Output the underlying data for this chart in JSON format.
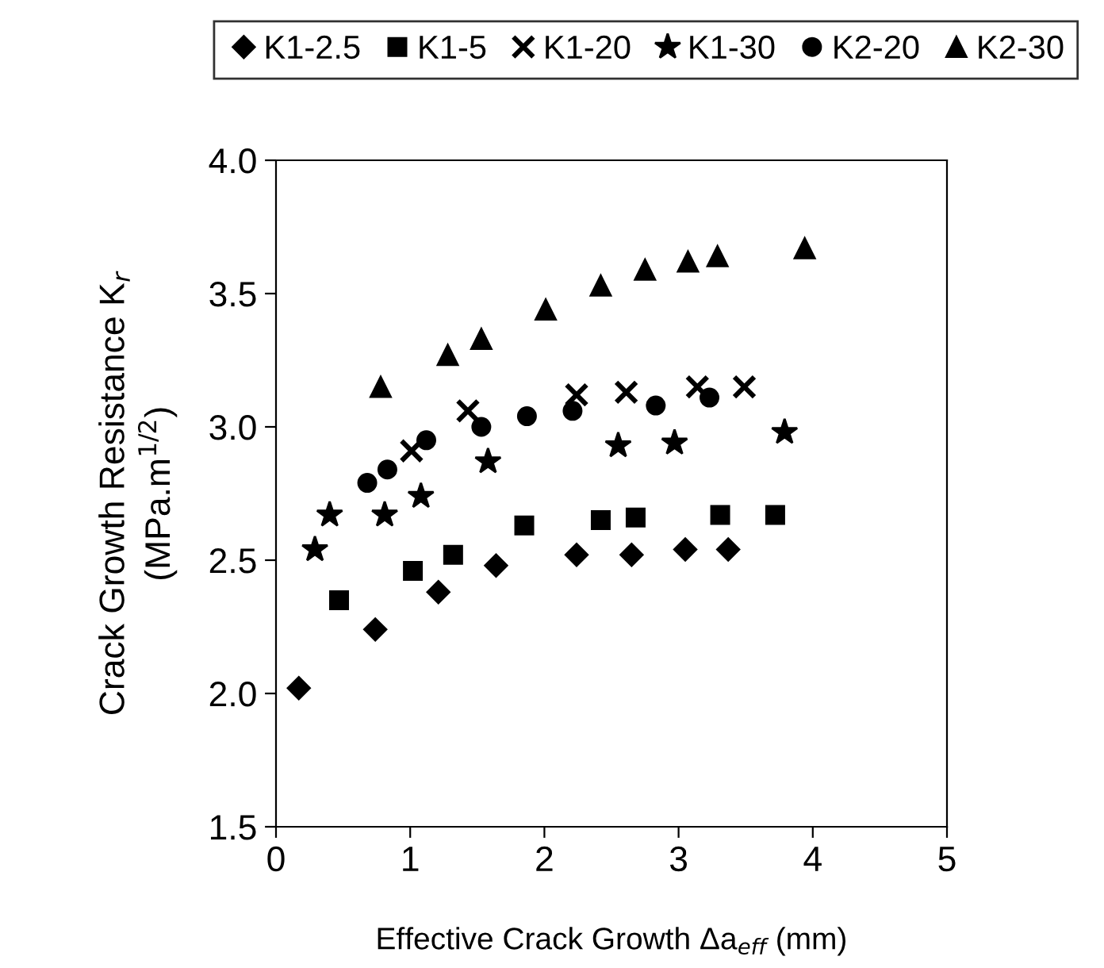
{
  "chart_data": {
    "type": "scatter",
    "xlabel": "Effective Crack Growth Δa$_{eff}$ (mm)",
    "ylabel": "Crack Growth Resistance K$_{r}$\n(MPa.m$^{1/2}$)",
    "xlim": [
      0,
      5
    ],
    "xticks": [
      0,
      1,
      2,
      3,
      4,
      5
    ],
    "ylim": [
      1.5,
      4.0
    ],
    "yticks": [
      {
        "value": 1.5,
        "label": "1.5"
      },
      {
        "value": 2.0,
        "label": "2.0"
      },
      {
        "value": 2.5,
        "label": "2.5"
      },
      {
        "value": 3.0,
        "label": "3.0"
      },
      {
        "value": 3.5,
        "label": "3.5"
      },
      {
        "value": 4.0,
        "label": "4.0"
      }
    ],
    "grid": false,
    "legend": "top",
    "series": [
      {
        "name": "K1-2.5",
        "color": "#000000",
        "marker": "diamond",
        "x": [
          0.17,
          0.74,
          1.21,
          1.64,
          2.24,
          2.65,
          3.05,
          3.37
        ],
        "values": [
          2.02,
          2.24,
          2.38,
          2.48,
          2.52,
          2.52,
          2.54,
          2.54
        ]
      },
      {
        "name": "K1-5",
        "color": "#000000",
        "marker": "square",
        "x": [
          0.47,
          1.02,
          1.32,
          1.85,
          2.42,
          2.68,
          3.31,
          3.72
        ],
        "values": [
          2.35,
          2.46,
          2.52,
          2.63,
          2.65,
          2.66,
          2.67,
          2.67
        ]
      },
      {
        "name": "K1-20",
        "color": "#000000",
        "marker": "cross",
        "x": [
          1.01,
          1.43,
          2.24,
          2.61,
          3.14,
          3.49
        ],
        "values": [
          2.91,
          3.06,
          3.12,
          3.13,
          3.15,
          3.15
        ]
      },
      {
        "name": "K1-30",
        "color": "#000000",
        "marker": "star",
        "x": [
          0.29,
          0.4,
          0.81,
          1.08,
          1.58,
          2.55,
          2.97,
          3.79
        ],
        "values": [
          2.54,
          2.67,
          2.67,
          2.74,
          2.87,
          2.93,
          2.94,
          2.98
        ]
      },
      {
        "name": "K2-20",
        "color": "#000000",
        "marker": "circle",
        "x": [
          0.68,
          0.83,
          1.12,
          1.53,
          1.87,
          2.21,
          2.83,
          3.23
        ],
        "values": [
          2.79,
          2.84,
          2.95,
          3.0,
          3.04,
          3.06,
          3.08,
          3.11
        ]
      },
      {
        "name": "K2-30",
        "color": "#000000",
        "marker": "triangle",
        "x": [
          0.78,
          1.28,
          1.53,
          2.01,
          2.42,
          2.75,
          3.07,
          3.29,
          3.94
        ],
        "values": [
          3.15,
          3.27,
          3.33,
          3.44,
          3.53,
          3.59,
          3.62,
          3.64,
          3.67
        ]
      }
    ]
  }
}
